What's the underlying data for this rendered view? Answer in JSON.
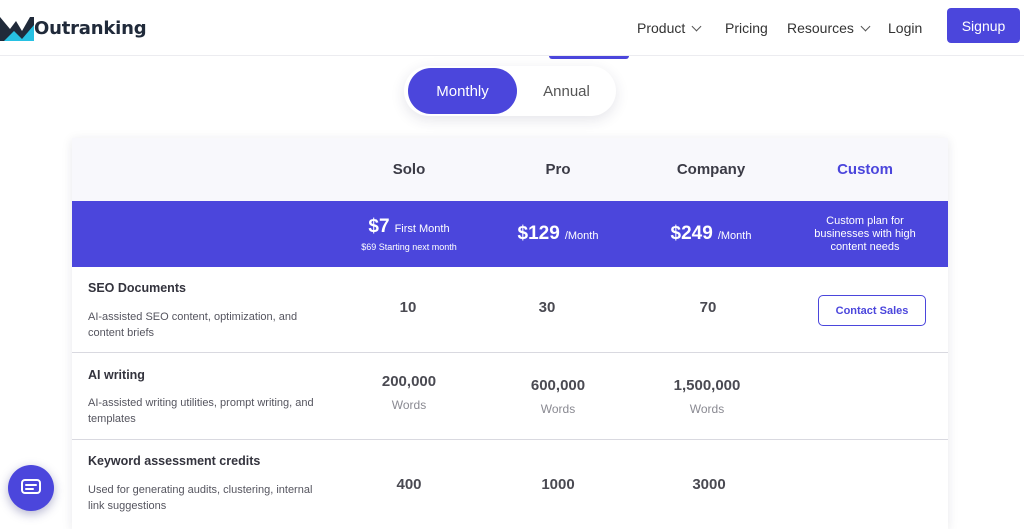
{
  "brand": {
    "name": "Outranking",
    "accent": "#4b46dc"
  },
  "nav": {
    "items": [
      {
        "label": "Product",
        "dropdown": true
      },
      {
        "label": "Pricing",
        "dropdown": false
      },
      {
        "label": "Resources",
        "dropdown": true
      },
      {
        "label": "Login",
        "dropdown": false
      }
    ],
    "signup_label": "Signup"
  },
  "billing_toggle": {
    "active": "Monthly",
    "inactive": "Annual"
  },
  "plans": [
    {
      "name": "Solo",
      "amount": "$7",
      "period": "First Month",
      "sub": "$69 Starting next month"
    },
    {
      "name": "Pro",
      "amount": "$129",
      "period": "/Month",
      "sub": ""
    },
    {
      "name": "Company",
      "amount": "$249",
      "period": "/Month",
      "sub": ""
    },
    {
      "name": "Custom",
      "description": "Custom plan for businesses with high content needs"
    }
  ],
  "features": [
    {
      "title": "SEO Documents",
      "description": "AI-assisted SEO content, optimization, and content briefs",
      "values": [
        "10",
        "30",
        "70"
      ],
      "unit": "",
      "custom_action": "Contact Sales"
    },
    {
      "title": "AI writing",
      "description": "AI-assisted writing utilities, prompt writing, and templates",
      "values": [
        "200,000",
        "600,000",
        "1,500,000"
      ],
      "unit": "Words"
    },
    {
      "title": "Keyword assessment credits",
      "description": "Used for generating audits, clustering, internal link suggestions",
      "values": [
        "400",
        "1000",
        "3000"
      ],
      "unit": ""
    }
  ],
  "chat_widget": {
    "icon": "chat-icon"
  }
}
